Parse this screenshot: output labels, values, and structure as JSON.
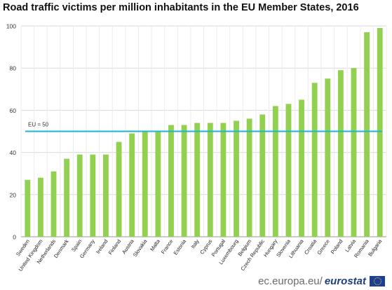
{
  "chart_data": {
    "type": "bar",
    "title": "Road traffic victims per million inhabitants in the EU Member States, 2016",
    "categories": [
      "Sweden",
      "United Kingdom",
      "Netherlands",
      "Denmark",
      "Spain",
      "Germany",
      "Ireland",
      "Finland",
      "Austria",
      "Slovakia",
      "Malta",
      "France",
      "Estonia",
      "Italy",
      "Cyprus",
      "Portugal",
      "Luxembourg",
      "Belgium",
      "Czech Republic",
      "Hungary",
      "Slovenia",
      "Lithuania",
      "Croatia",
      "Greece",
      "Poland",
      "Latvia",
      "Romania",
      "Bulgaria"
    ],
    "values": [
      27,
      28,
      31,
      37,
      39,
      39,
      39,
      45,
      49,
      50,
      50,
      53,
      53,
      54,
      54,
      54,
      55,
      56,
      58,
      62,
      63,
      65,
      73,
      75,
      79,
      80,
      97,
      99
    ],
    "ylim": [
      0,
      100
    ],
    "yticks": [
      0,
      20,
      40,
      60,
      80,
      100
    ],
    "grid": true,
    "reference_line": {
      "value": 50,
      "label": "EU = 50"
    },
    "colors": {
      "bar": "#92d050",
      "reference_line": "#1fb4d0",
      "grid": "#d9d9d9"
    }
  },
  "footer": {
    "domain": "ec.europa.eu/",
    "brand": "eurostat",
    "logo_icon": "eu-flag-icon"
  }
}
